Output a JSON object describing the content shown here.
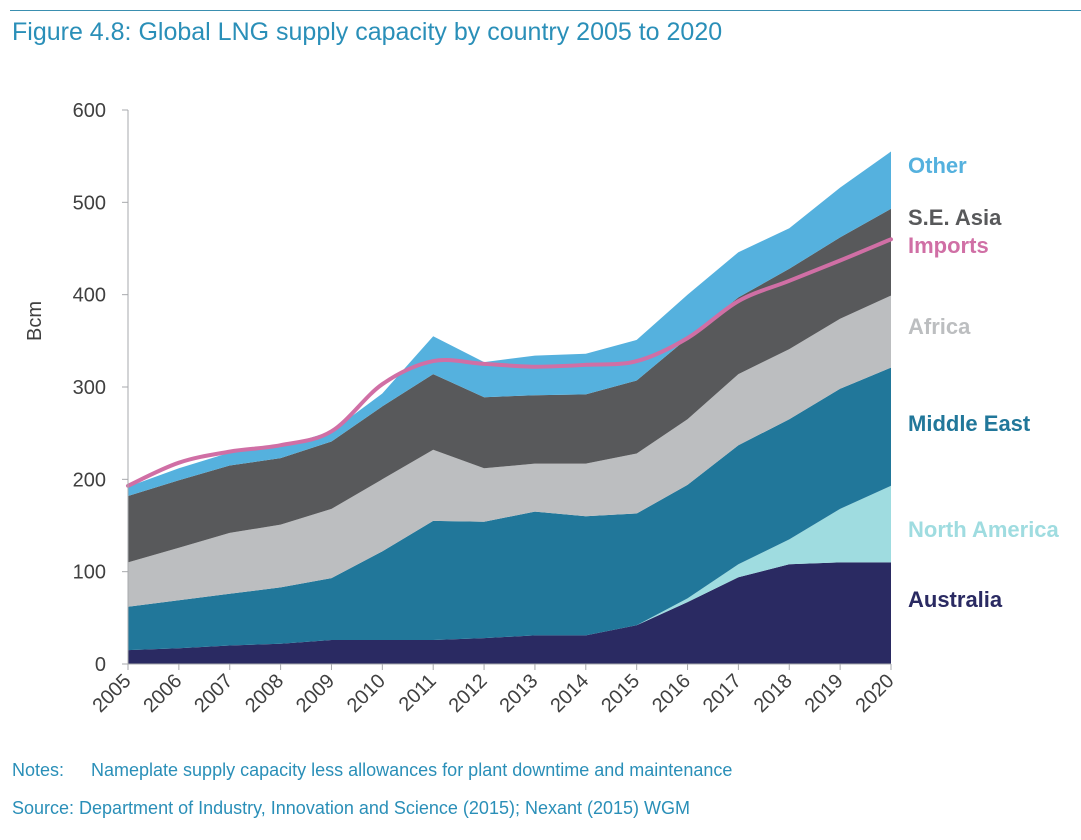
{
  "figure": {
    "title": "Figure 4.8: Global LNG supply capacity by country 2005 to 2020"
  },
  "notes": {
    "notes_label": "Notes:",
    "notes_text": "Nameplate supply capacity less allowances for plant downtime and maintenance",
    "source_text": "Source: Department of Industry, Innovation and Science (2015); Nexant (2015) WGM"
  },
  "chart_data": {
    "type": "area",
    "stacked": true,
    "title": "Global LNG supply capacity by country 2005 to 2020",
    "xlabel": "",
    "ylabel": "Bcm",
    "ylim": [
      0,
      600
    ],
    "yticks": [
      0,
      100,
      200,
      300,
      400,
      500,
      600
    ],
    "grid": false,
    "legend_position": "right (direct labels)",
    "x": [
      "2005",
      "2006",
      "2007",
      "2008",
      "2009",
      "2010",
      "2011",
      "2012",
      "2013",
      "2014",
      "2015",
      "2016",
      "2017",
      "2018",
      "2019",
      "2020"
    ],
    "series": [
      {
        "name": "Australia",
        "color": "#2a2a62",
        "values": [
          15,
          17,
          20,
          22,
          26,
          26,
          26,
          28,
          31,
          31,
          42,
          67,
          94,
          108,
          110,
          110
        ]
      },
      {
        "name": "North America",
        "color": "#9fdce0",
        "values": [
          0,
          0,
          0,
          0,
          0,
          0,
          0,
          0,
          0,
          0,
          0,
          4,
          14,
          27,
          58,
          83
        ]
      },
      {
        "name": "Middle East",
        "color": "#21779a",
        "values": [
          47,
          52,
          56,
          61,
          67,
          96,
          129,
          126,
          134,
          129,
          121,
          123,
          129,
          130,
          130,
          128
        ]
      },
      {
        "name": "Africa",
        "color": "#bcbec0",
        "values": [
          48,
          57,
          66,
          68,
          75,
          78,
          77,
          58,
          52,
          57,
          65,
          71,
          77,
          76,
          76,
          78
        ]
      },
      {
        "name": "S.E. Asia",
        "color": "#58595b",
        "values": [
          72,
          73,
          73,
          72,
          73,
          79,
          82,
          77,
          74,
          75,
          79,
          88,
          83,
          87,
          88,
          94
        ]
      },
      {
        "name": "Other",
        "color": "#55b1de",
        "values": [
          10,
          13,
          14,
          12,
          11,
          14,
          41,
          38,
          43,
          44,
          44,
          47,
          49,
          44,
          54,
          62
        ]
      }
    ],
    "line": {
      "name": "Imports",
      "color": "#d06fa5",
      "values": [
        193,
        218,
        230,
        237,
        252,
        303,
        328,
        325,
        322,
        324,
        328,
        353,
        393,
        415,
        437,
        460
      ]
    },
    "legend_labels": [
      {
        "name": "Other",
        "color": "#55b1de"
      },
      {
        "name": "S.E. Asia",
        "color": "#58595b"
      },
      {
        "name": "Imports",
        "color": "#d06fa5"
      },
      {
        "name": "Africa",
        "color": "#bcbec0"
      },
      {
        "name": "Middle East",
        "color": "#21779a"
      },
      {
        "name": "North America",
        "color": "#9fdce0"
      },
      {
        "name": "Australia",
        "color": "#2a2a62"
      }
    ]
  }
}
